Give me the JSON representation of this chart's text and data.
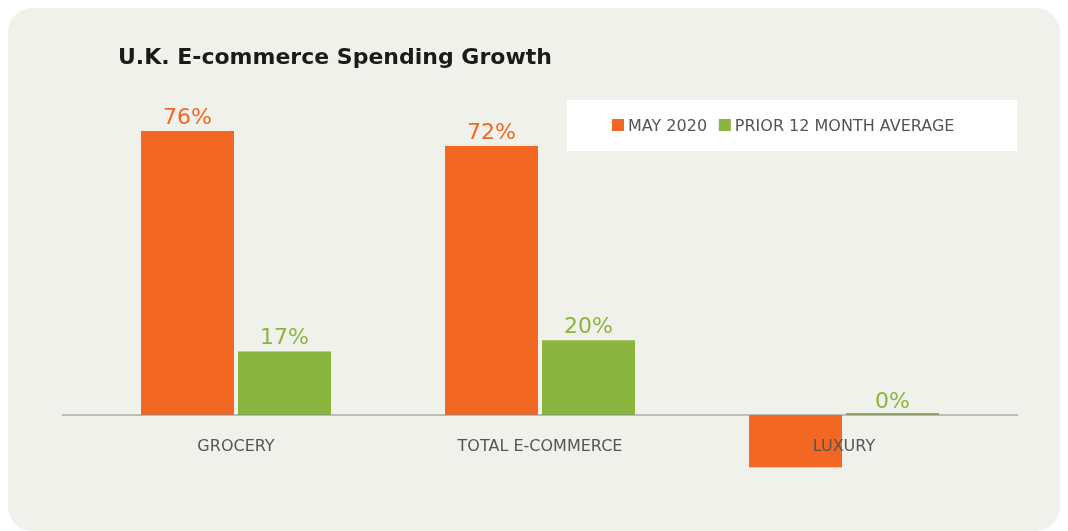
{
  "chart_data": {
    "type": "bar",
    "title": "U.K. E-commerce Spending Growth",
    "categories": [
      "GROCERY",
      "TOTAL E-COMMERCE",
      "LUXURY"
    ],
    "series": [
      {
        "name": "MAY 2020",
        "color": "#f26722",
        "values": [
          76,
          72,
          -14
        ],
        "value_labels": [
          "76%",
          "72%",
          null
        ]
      },
      {
        "name": "PRIOR 12 MONTH AVERAGE",
        "color": "#8ab53f",
        "values": [
          17,
          20,
          0
        ],
        "value_labels": [
          "17%",
          "20%",
          "0%"
        ]
      }
    ],
    "legend": "top right"
  }
}
